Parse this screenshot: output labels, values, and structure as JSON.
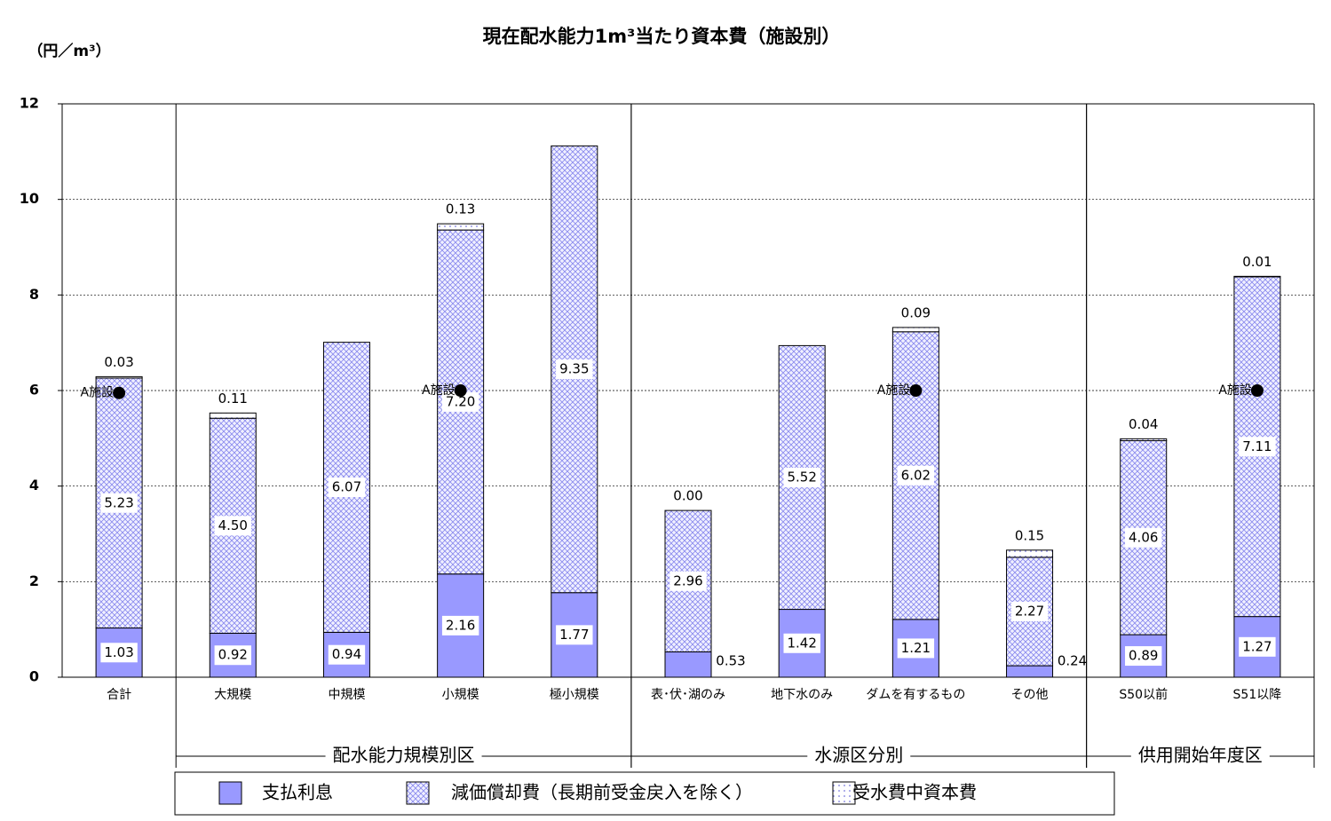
{
  "chart_data": {
    "type": "bar",
    "stacked": true,
    "title": "現在配水能力1m³当たり資本費（施設別）",
    "y_label": "（円／m³）",
    "categories": [
      "合計",
      "大規模",
      "中規模",
      "小規模",
      "極小規模",
      "表･伏･湖のみ",
      "地下水のみ",
      "ダムを有するもの",
      "その他",
      "S50以前",
      "S51以降"
    ],
    "series": [
      {
        "name": "支払利息",
        "color": "#9999ff",
        "pattern": "solid",
        "values": [
          1.03,
          0.92,
          0.94,
          2.16,
          1.77,
          0.53,
          1.42,
          1.21,
          0.24,
          0.89,
          1.27
        ],
        "value_labels": [
          "1.03",
          "0.92",
          "0.94",
          "2.16",
          "1.77",
          "0.53",
          "1.42",
          "1.21",
          "0.24",
          "0.89",
          "1.27"
        ]
      },
      {
        "name": "減価償却費（長期前受金戻入を除く）",
        "color": "#8888ee",
        "pattern": "crosshatch",
        "values": [
          5.23,
          4.5,
          6.07,
          7.2,
          9.35,
          2.96,
          5.52,
          6.02,
          2.27,
          4.06,
          7.11
        ],
        "value_labels": [
          "5.23",
          "4.50",
          "6.07",
          "7.20",
          "9.35",
          "2.96",
          "5.52",
          "6.02",
          "2.27",
          "4.06",
          "7.11"
        ]
      },
      {
        "name": "受水費中資本費",
        "color": "#7777dd",
        "pattern": "dots",
        "values": [
          0.03,
          0.11,
          null,
          0.13,
          null,
          0,
          null,
          0.09,
          0.15,
          0.04,
          0.01
        ],
        "value_labels": [
          "0.03",
          "0.11",
          null,
          "0.13",
          null,
          "0.00",
          null,
          "0.09",
          "0.15",
          "0.04",
          "0.01"
        ]
      }
    ],
    "reference": {
      "label": "A施設",
      "values": [
        5.95,
        null,
        null,
        6,
        null,
        null,
        null,
        6,
        null,
        null,
        6
      ]
    },
    "groups": [
      {
        "label": "配水能力規模別区",
        "start": 1,
        "count": 4
      },
      {
        "label": "水源区分別",
        "start": 5,
        "count": 4
      },
      {
        "label": "供用開始年度区",
        "start": 9,
        "count": 2
      }
    ],
    "ylim": [
      0,
      12
    ],
    "yticks": [
      0,
      2,
      4,
      6,
      8,
      10,
      12
    ],
    "grid": true,
    "legend": "bottom"
  }
}
